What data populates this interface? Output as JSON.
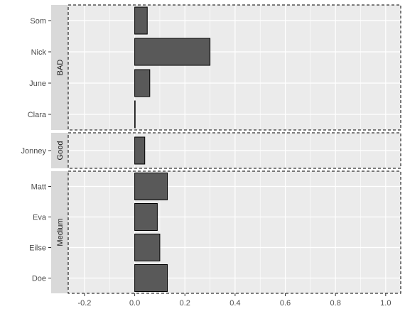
{
  "chart_data": {
    "type": "bar",
    "orientation": "horizontal",
    "facets": [
      {
        "label": "BAD",
        "categories": [
          "Som",
          "Nick",
          "June",
          "Clara"
        ],
        "values": [
          0.05,
          0.3,
          0.06,
          0.0
        ]
      },
      {
        "label": "Good",
        "categories": [
          "Jonney"
        ],
        "values": [
          0.04
        ]
      },
      {
        "label": "Medium",
        "categories": [
          "Matt",
          "Eva",
          "Eilse",
          "Doe"
        ],
        "values": [
          0.13,
          0.09,
          0.1,
          0.13
        ]
      }
    ],
    "x_ticks": [
      "-0.2",
      "0.0",
      "0.2",
      "0.4",
      "0.6",
      "0.8",
      "1.0"
    ],
    "x_tick_values": [
      -0.2,
      0.0,
      0.2,
      0.4,
      0.6,
      0.8,
      1.0
    ],
    "xlim": [
      -0.265,
      1.06
    ],
    "grid": true,
    "title": "",
    "xlabel": "",
    "ylabel": "",
    "colors": {
      "bar_fill": "#595959",
      "bar_stroke": "#000000",
      "panel_bg": "#ebebeb",
      "grid": "#ffffff",
      "strip_bg": "#d9d9d9",
      "tick_text": "#4d4d4d"
    }
  }
}
